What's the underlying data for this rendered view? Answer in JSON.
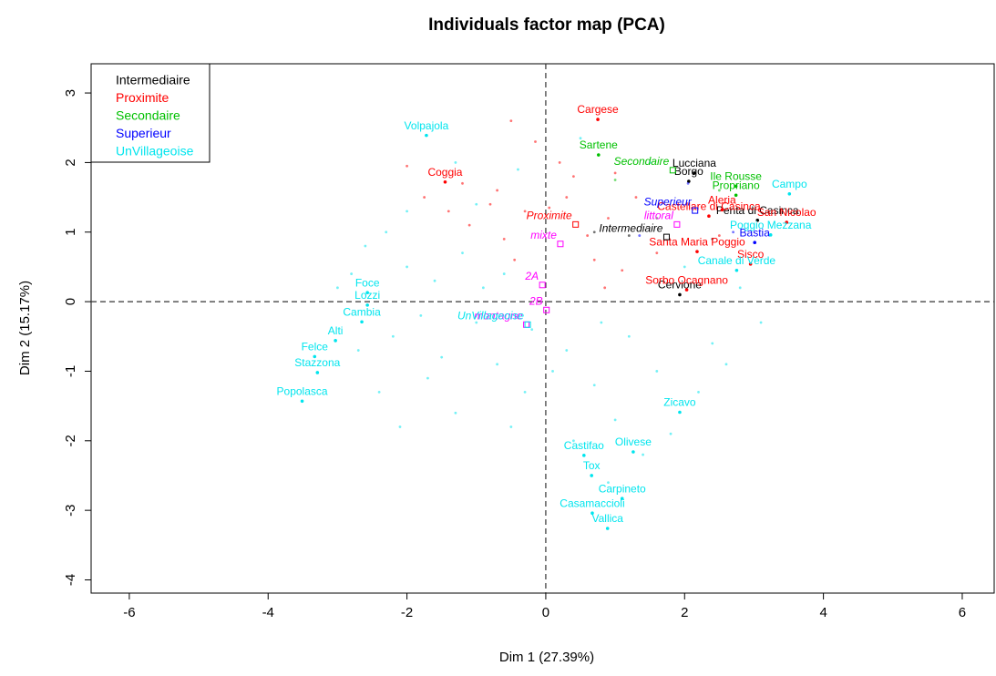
{
  "chart_data": {
    "type": "scatter",
    "title": "Individuals factor map (PCA)",
    "x_label": "Dim 1 (27.39%)",
    "y_label": "Dim 2 (15.17%)",
    "xlim": [
      -6.55,
      6.46
    ],
    "ylim": [
      -4.19,
      3.42
    ],
    "xticks": [
      -6,
      -4,
      -2,
      0,
      2,
      4,
      6
    ],
    "yticks": [
      -4,
      -3,
      -2,
      -1,
      0,
      1,
      2,
      3
    ],
    "reference_lines": [
      0
    ],
    "legend": "top-left",
    "series": [
      {
        "name": "Intermediaire",
        "color": "#000000",
        "x": [
          2.14,
          2.06,
          3.05,
          1.93,
          1.2,
          2.4,
          0.7
        ],
        "y": [
          1.85,
          1.73,
          1.17,
          0.1,
          0.95,
          0.9,
          1.0
        ],
        "labels": [
          "Lucciana",
          "Borgo",
          "Penta di Casinca",
          "Cervione",
          null,
          null,
          null
        ]
      },
      {
        "name": "Proximite",
        "color": "#ff0000",
        "x": [
          0.75,
          -1.45,
          2.35,
          2.54,
          3.47,
          2.18,
          2.95,
          2.03,
          -0.5,
          -2.0,
          -1.2,
          -0.7,
          0.3,
          -0.3,
          -1.1,
          0.4,
          0.9,
          1.3,
          -0.6,
          0.7,
          1.1,
          -1.4,
          -0.8,
          0.2,
          0.6,
          1.6,
          -0.15,
          -1.75,
          2.5,
          1.0,
          0.05,
          -0.45,
          0.85
        ],
        "y": [
          2.62,
          1.72,
          1.23,
          1.32,
          1.14,
          0.72,
          0.54,
          0.17,
          2.6,
          1.95,
          1.7,
          1.6,
          1.5,
          1.3,
          1.1,
          1.8,
          1.2,
          1.5,
          0.9,
          0.6,
          0.45,
          1.3,
          1.4,
          2.0,
          0.95,
          0.7,
          2.3,
          1.5,
          0.95,
          1.85,
          1.35,
          0.6,
          0.2
        ],
        "labels": [
          "Cargese",
          "Coggia",
          "Castellare di Casinca",
          "Aleria",
          "San Nicolao",
          "Santa Maria Poggio",
          "Sisco",
          "Sorbo Ocagnano",
          null,
          null,
          null,
          null,
          null,
          null,
          null,
          null,
          null,
          null,
          null,
          null,
          null,
          null,
          null,
          null,
          null,
          null,
          null,
          null,
          null,
          null,
          null,
          null,
          null
        ]
      },
      {
        "name": "Secondaire",
        "color": "#00c000",
        "x": [
          0.76,
          2.74,
          2.74,
          1.0,
          2.5,
          1.6
        ],
        "y": [
          2.11,
          1.66,
          1.53,
          1.75,
          1.6,
          1.2
        ],
        "labels": [
          "Sartene",
          "Ile Rousse",
          "Propriano",
          null,
          null,
          null
        ]
      },
      {
        "name": "Superieur",
        "color": "#0000ff",
        "x": [
          3.01,
          2.05,
          1.35,
          2.7
        ],
        "y": [
          0.85,
          1.7,
          0.95,
          1.0
        ],
        "labels": [
          "Bastia",
          null,
          null,
          null
        ]
      },
      {
        "name": "UnVillageoise",
        "color": "#00e5ee",
        "x": [
          -1.72,
          3.51,
          3.24,
          2.75,
          -2.57,
          -2.57,
          -2.65,
          -3.03,
          -3.33,
          -3.29,
          -3.51,
          1.93,
          1.26,
          0.55,
          0.66,
          1.1,
          0.67,
          0.89,
          -2.3,
          -2.6,
          -2.0,
          -1.6,
          -2.8,
          -1.8,
          -2.2,
          -1.5,
          -2.4,
          -1.0,
          -0.7,
          -0.3,
          0.3,
          0.7,
          1.2,
          1.6,
          2.2,
          2.4,
          1.0,
          0.4,
          -0.5,
          -1.3,
          -0.9,
          -1.2,
          -2.0,
          -1.3,
          -0.4,
          0.5,
          1.5,
          2.8,
          3.1,
          2.6,
          1.8,
          0.1,
          -0.2,
          -1.7,
          -2.7,
          -2.1,
          0.9,
          1.4,
          -3.0,
          -0.6,
          0.8,
          2.0,
          -1.0
        ],
        "y": [
          2.39,
          1.55,
          0.96,
          0.45,
          0.13,
          -0.05,
          -0.29,
          -0.56,
          -0.79,
          -1.02,
          -1.43,
          -1.59,
          -2.16,
          -2.21,
          -2.5,
          -2.83,
          -3.04,
          -3.26,
          1.0,
          0.8,
          0.5,
          0.3,
          0.4,
          -0.2,
          -0.5,
          -0.8,
          -1.3,
          -0.3,
          -0.9,
          -1.3,
          -0.7,
          -1.2,
          -0.5,
          -1.0,
          -1.3,
          -0.6,
          -1.7,
          -2.0,
          -1.8,
          -1.6,
          0.2,
          0.7,
          1.3,
          2.0,
          1.9,
          2.35,
          2.0,
          0.2,
          -0.3,
          -0.9,
          -1.9,
          -1.0,
          -0.4,
          -1.1,
          -0.7,
          -1.8,
          -2.6,
          -2.2,
          0.2,
          0.4,
          -0.3,
          0.5,
          1.4
        ],
        "labels": [
          "Volpajola",
          "Campo",
          "Poggio Mezzana",
          "Canale di Verde",
          "Foce",
          "Lozzi",
          "Cambia",
          "Alti",
          "Felce",
          "Stazzona",
          "Popolasca",
          "Zicavo",
          "Olivese",
          "Castifao",
          "Tox",
          "Carpineto",
          "Casamaccioli",
          "Vallica",
          null,
          null,
          null,
          null,
          null,
          null,
          null,
          null,
          null,
          null,
          null,
          null,
          null,
          null,
          null,
          null,
          null,
          null,
          null,
          null,
          null,
          null,
          null,
          null,
          null,
          null,
          null,
          null,
          null,
          null,
          null,
          null,
          null,
          null,
          null,
          null,
          null,
          null,
          null,
          null,
          null,
          null,
          null,
          null,
          null
        ]
      }
    ],
    "supplementary": {
      "labels": [
        "Secondaire",
        "Superieur",
        "Proximite",
        "littoral",
        "Intermediaire",
        "mixte",
        "2A",
        "2B",
        "montagne",
        "UnVillageoise"
      ],
      "colors": [
        "#00c000",
        "#0000ff",
        "#ff0000",
        "#ff00ff",
        "#000000",
        "#ff00ff",
        "#ff00ff",
        "#ff00ff",
        "#ff00ff",
        "#00e5ee"
      ],
      "x": [
        1.83,
        2.15,
        0.43,
        1.89,
        1.74,
        0.21,
        -0.05,
        0.01,
        -0.28,
        -0.26
      ],
      "y": [
        1.89,
        1.31,
        1.11,
        1.11,
        0.93,
        0.83,
        0.24,
        -0.12,
        -0.33,
        -0.33
      ]
    }
  }
}
